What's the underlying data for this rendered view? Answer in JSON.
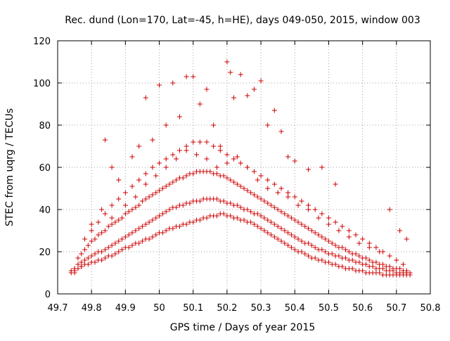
{
  "chart_data": {
    "type": "scatter",
    "title": "Rec. dund (Lon=170, Lat=-45, h=HE), days 049-050, 2015, window 003",
    "xlabel": "GPS time / Days of year 2015",
    "ylabel": "STEC from uqrg / TECUs",
    "xlim": [
      49.7,
      50.8
    ],
    "ylim": [
      0,
      120
    ],
    "x_ticks": [
      {
        "value": 49.7,
        "label": "49.7"
      },
      {
        "value": 49.8,
        "label": "49.8"
      },
      {
        "value": 49.9,
        "label": "49.9"
      },
      {
        "value": 50.0,
        "label": "50"
      },
      {
        "value": 50.1,
        "label": "50.1"
      },
      {
        "value": 50.2,
        "label": "50.2"
      },
      {
        "value": 50.3,
        "label": "50.3"
      },
      {
        "value": 50.4,
        "label": "50.4"
      },
      {
        "value": 50.5,
        "label": "50.5"
      },
      {
        "value": 50.6,
        "label": "50.6"
      },
      {
        "value": 50.7,
        "label": "50.7"
      },
      {
        "value": 50.8,
        "label": "50.8"
      }
    ],
    "y_ticks": [
      {
        "value": 0,
        "label": "0"
      },
      {
        "value": 20,
        "label": "20"
      },
      {
        "value": 40,
        "label": "40"
      },
      {
        "value": 60,
        "label": "60"
      },
      {
        "value": 80,
        "label": "80"
      },
      {
        "value": 100,
        "label": "100"
      },
      {
        "value": 120,
        "label": "120"
      }
    ],
    "grid": true,
    "marker": "+",
    "color": "#cc0000",
    "series": [
      {
        "x": [
          49.74,
          49.74,
          49.75,
          49.75,
          49.75,
          49.76,
          49.77,
          49.77,
          49.78,
          49.79,
          49.8,
          49.81,
          49.82,
          49.83,
          49.84,
          49.85,
          49.86,
          49.87,
          49.88,
          49.89,
          49.9,
          49.91,
          49.92,
          49.93,
          49.94,
          49.95,
          49.96,
          49.97,
          49.98,
          49.99,
          50.0,
          50.01,
          50.02,
          50.03,
          50.04,
          50.05,
          50.06,
          50.07,
          50.08,
          50.09,
          50.1,
          50.11,
          50.12,
          50.13,
          50.14,
          50.15,
          50.16,
          50.17,
          50.18,
          50.19,
          50.2,
          50.21,
          50.22,
          50.23,
          50.24,
          50.25,
          50.26,
          50.27,
          50.28,
          50.29,
          50.3,
          50.31,
          50.32,
          50.33,
          50.34,
          50.35,
          50.36,
          50.37,
          50.38,
          50.39,
          50.4,
          50.41,
          50.42,
          50.43,
          50.44,
          50.45,
          50.46,
          50.47,
          50.48,
          50.49,
          50.5,
          50.51,
          50.52,
          50.53,
          50.54,
          50.55,
          50.56,
          50.57,
          50.58,
          50.59,
          50.6,
          50.61,
          50.62,
          50.63,
          50.64,
          50.65,
          50.66,
          50.67,
          50.68,
          50.69,
          50.7,
          50.71,
          50.72,
          50.73,
          50.74
        ],
        "y": [
          10,
          11,
          10,
          11,
          12,
          12,
          13,
          13,
          14,
          14,
          15,
          15,
          16,
          16,
          17,
          18,
          18,
          19,
          20,
          21,
          22,
          22,
          23,
          24,
          24,
          25,
          26,
          26,
          27,
          28,
          29,
          29,
          30,
          31,
          31,
          32,
          32,
          33,
          33,
          34,
          34,
          35,
          35,
          36,
          36,
          37,
          37,
          37,
          38,
          38,
          37,
          37,
          36,
          36,
          35,
          35,
          34,
          34,
          33,
          32,
          31,
          30,
          29,
          28,
          27,
          26,
          25,
          24,
          23,
          22,
          21,
          20,
          20,
          19,
          18,
          17,
          17,
          16,
          16,
          15,
          15,
          14,
          14,
          13,
          13,
          12,
          12,
          12,
          11,
          11,
          11,
          10,
          10,
          10,
          10,
          10,
          9,
          9,
          9,
          9,
          9,
          9,
          9,
          9,
          9
        ]
      },
      {
        "x": [
          49.75,
          49.76,
          49.77,
          49.78,
          49.79,
          49.8,
          49.81,
          49.82,
          49.83,
          49.84,
          49.85,
          49.86,
          49.87,
          49.88,
          49.89,
          49.9,
          49.91,
          49.92,
          49.93,
          49.94,
          49.95,
          49.96,
          49.97,
          49.98,
          49.99,
          50.0,
          50.01,
          50.02,
          50.03,
          50.04,
          50.05,
          50.06,
          50.07,
          50.08,
          50.09,
          50.1,
          50.11,
          50.12,
          50.13,
          50.14,
          50.15,
          50.16,
          50.17,
          50.18,
          50.19,
          50.2,
          50.21,
          50.22,
          50.23,
          50.24,
          50.25,
          50.26,
          50.27,
          50.28,
          50.29,
          50.3,
          50.31,
          50.32,
          50.33,
          50.34,
          50.35,
          50.36,
          50.37,
          50.38,
          50.39,
          50.4,
          50.41,
          50.42,
          50.43,
          50.44,
          50.45,
          50.46,
          50.47,
          50.48,
          50.49,
          50.5,
          50.51,
          50.52,
          50.53,
          50.54,
          50.55,
          50.56,
          50.57,
          50.58,
          50.59,
          50.6,
          50.61,
          50.62,
          50.63,
          50.64,
          50.65,
          50.66,
          50.67,
          50.68,
          50.69,
          50.7,
          50.71,
          50.72,
          50.73,
          50.74
        ],
        "y": [
          12,
          14,
          15,
          16,
          17,
          18,
          19,
          20,
          20,
          21,
          22,
          23,
          24,
          25,
          26,
          27,
          28,
          29,
          30,
          31,
          32,
          33,
          34,
          35,
          36,
          37,
          38,
          39,
          40,
          41,
          41,
          42,
          42,
          43,
          43,
          44,
          44,
          44,
          45,
          45,
          45,
          45,
          45,
          44,
          44,
          43,
          43,
          42,
          42,
          41,
          40,
          40,
          39,
          38,
          38,
          37,
          36,
          35,
          34,
          33,
          32,
          31,
          30,
          29,
          28,
          27,
          26,
          25,
          24,
          24,
          23,
          22,
          21,
          21,
          20,
          19,
          19,
          18,
          18,
          17,
          17,
          16,
          16,
          15,
          15,
          14,
          14,
          13,
          13,
          12,
          12,
          12,
          11,
          11,
          11,
          10,
          10,
          10,
          10,
          10
        ]
      },
      {
        "x": [
          49.76,
          49.77,
          49.78,
          49.79,
          49.8,
          49.81,
          49.82,
          49.83,
          49.84,
          49.85,
          49.86,
          49.87,
          49.88,
          49.89,
          49.9,
          49.91,
          49.92,
          49.93,
          49.94,
          49.95,
          49.96,
          49.97,
          49.98,
          49.99,
          50.0,
          50.01,
          50.02,
          50.03,
          50.04,
          50.05,
          50.06,
          50.07,
          50.08,
          50.09,
          50.1,
          50.11,
          50.12,
          50.13,
          50.14,
          50.15,
          50.16,
          50.17,
          50.18,
          50.19,
          50.2,
          50.21,
          50.22,
          50.23,
          50.24,
          50.25,
          50.26,
          50.27,
          50.28,
          50.29,
          50.3,
          50.31,
          50.32,
          50.33,
          50.34,
          50.35,
          50.36,
          50.37,
          50.38,
          50.39,
          50.4,
          50.41,
          50.42,
          50.43,
          50.44,
          50.45,
          50.46,
          50.47,
          50.48,
          50.49,
          50.5,
          50.51,
          50.52,
          50.53,
          50.54,
          50.55,
          50.56,
          50.57,
          50.58,
          50.59,
          50.6,
          50.61,
          50.62,
          50.63,
          50.64,
          50.65,
          50.66,
          50.67,
          50.68,
          50.69,
          50.7,
          50.71,
          50.72,
          50.73
        ],
        "y": [
          17,
          19,
          21,
          23,
          25,
          26,
          28,
          29,
          30,
          32,
          33,
          34,
          35,
          36,
          38,
          39,
          40,
          41,
          42,
          44,
          45,
          46,
          47,
          48,
          49,
          50,
          51,
          52,
          53,
          54,
          55,
          55,
          56,
          57,
          57,
          58,
          58,
          58,
          58,
          58,
          57,
          57,
          56,
          56,
          55,
          54,
          53,
          52,
          51,
          50,
          49,
          48,
          47,
          46,
          45,
          44,
          43,
          42,
          41,
          40,
          39,
          38,
          37,
          36,
          35,
          34,
          33,
          32,
          31,
          30,
          29,
          28,
          27,
          26,
          25,
          24,
          23,
          22,
          22,
          21,
          20,
          19,
          19,
          18,
          17,
          17,
          16,
          15,
          15,
          14,
          14,
          13,
          13,
          12,
          12,
          12,
          11,
          11
        ]
      },
      {
        "x": [
          49.78,
          49.8,
          49.82,
          49.84,
          49.86,
          49.88,
          49.9,
          49.92,
          49.94,
          49.96,
          49.98,
          50.0,
          50.02,
          50.04,
          50.06,
          50.08,
          50.1,
          50.12,
          50.14,
          50.16,
          50.18,
          50.2,
          50.22,
          50.24,
          50.26,
          50.28,
          50.3,
          50.32,
          50.34,
          50.36,
          50.38,
          50.4,
          50.42,
          50.44,
          50.46,
          50.48,
          50.5,
          50.52,
          50.54,
          50.56,
          50.58,
          50.6,
          50.62,
          50.64,
          50.66,
          50.68,
          50.7,
          50.72
        ],
        "y": [
          26,
          30,
          34,
          38,
          42,
          45,
          48,
          51,
          54,
          57,
          60,
          62,
          64,
          66,
          68,
          70,
          72,
          72,
          72,
          70,
          68,
          66,
          64,
          62,
          60,
          58,
          56,
          54,
          52,
          50,
          48,
          46,
          44,
          42,
          40,
          38,
          36,
          34,
          32,
          30,
          28,
          26,
          24,
          22,
          20,
          18,
          16,
          14
        ]
      },
      {
        "x": [
          49.84,
          49.86,
          49.88,
          49.92,
          49.94,
          49.96,
          49.98,
          50.0,
          50.02,
          50.04,
          50.06,
          50.08,
          50.1,
          50.12,
          50.14,
          50.16,
          50.18,
          50.2,
          50.21,
          50.22,
          50.24,
          50.26,
          50.28,
          50.3,
          50.32,
          50.34,
          50.36,
          50.38,
          50.4,
          50.44,
          50.48,
          50.52
        ],
        "y": [
          73,
          60,
          54,
          65,
          70,
          93,
          73,
          99,
          80,
          100,
          84,
          103,
          103,
          90,
          97,
          80,
          70,
          110,
          105,
          93,
          104,
          94,
          97,
          101,
          80,
          87,
          77,
          65,
          63,
          59,
          60,
          52
        ]
      },
      {
        "x": [
          49.8,
          49.83,
          49.86,
          49.9,
          49.93,
          49.96,
          49.99,
          50.02,
          50.05,
          50.08,
          50.11,
          50.14,
          50.17,
          50.2,
          50.23,
          50.26,
          50.29,
          50.32,
          50.35,
          50.38,
          50.41,
          50.44,
          50.47,
          50.5,
          50.53,
          50.56,
          50.59,
          50.62,
          50.65,
          50.68,
          50.71,
          50.73
        ],
        "y": [
          33,
          40,
          36,
          42,
          46,
          52,
          56,
          60,
          64,
          68,
          66,
          64,
          60,
          62,
          65,
          60,
          54,
          50,
          48,
          46,
          42,
          40,
          36,
          33,
          30,
          27,
          24,
          22,
          20,
          40,
          30,
          26
        ]
      }
    ]
  }
}
